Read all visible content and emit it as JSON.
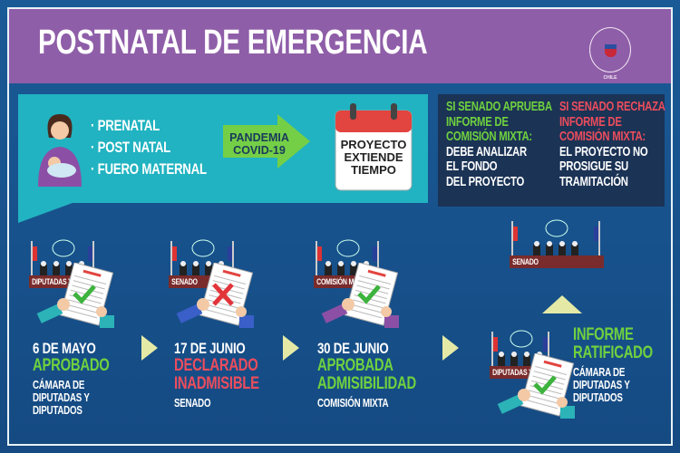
{
  "header": {
    "title": "POSTNATAL DE EMERGENCIA",
    "logo_text": "CÁMARA DE DIPUTADAS Y DIPUTADOS CHILE"
  },
  "intro": {
    "rights": [
      "· PRENATAL",
      "· POST NATAL",
      "· FUERO MATERNAL"
    ],
    "arrow_label": [
      "PANDEMIA",
      "COVID-19"
    ],
    "calendar_label": [
      "PROYECTO",
      "EXTIENDE",
      "TIEMPO"
    ]
  },
  "outcomes": {
    "approve": {
      "condition": [
        "SI SENADO APRUEBA",
        "INFORME DE",
        "COMISIÓN MIXTA:"
      ],
      "result": [
        "DEBE ANALIZAR",
        "EL FONDO",
        "DEL PROYECTO"
      ]
    },
    "reject": {
      "condition": [
        "SI SENADO RECHAZA",
        "INFORME DE",
        "COMISIÓN MIXTA:"
      ],
      "result": [
        "EL PROYECTO NO",
        "PROSIGUE SU",
        "TRAMITACIÓN"
      ]
    }
  },
  "colors": {
    "purple": "#8f5ea8",
    "teal": "#21b3c1",
    "navy": "#1b3355",
    "blue": "#17508a",
    "green": "#6fd13f",
    "red": "#ec4d5d",
    "arrow": "#e4eaa6"
  },
  "steps": [
    {
      "chamber": "DIPUTADAS Y DIPUTADOS",
      "date": "6 DE MAYO",
      "status": "APROBADO",
      "status_color": "green",
      "mark": "check",
      "body": [
        "CÁMARA DE",
        "DIPUTADAS Y",
        "DIPUTADOS"
      ]
    },
    {
      "chamber": "SENADO",
      "date": "17 DE JUNIO",
      "status": [
        "DECLARADO",
        "INADMISIBLE"
      ],
      "status_color": "red",
      "mark": "cross",
      "body": [
        "SENADO"
      ]
    },
    {
      "chamber": "COMISIÓN MIXTA",
      "date": "30 DE JUNIO",
      "status": [
        "APROBADA",
        "ADMISIBILIDAD"
      ],
      "status_color": "green",
      "mark": "check",
      "body": [
        "COMISIÓN MIXTA"
      ]
    },
    {
      "chamber": "DIPUTADAS Y DIPUTADOS",
      "status": [
        "INFORME",
        "RATIFICADO"
      ],
      "status_color": "green",
      "mark": "check",
      "body": [
        "CÁMARA DE",
        "DIPUTADAS Y",
        "DIPUTADOS"
      ]
    }
  ],
  "senate_panel": {
    "label": "SENADO"
  }
}
